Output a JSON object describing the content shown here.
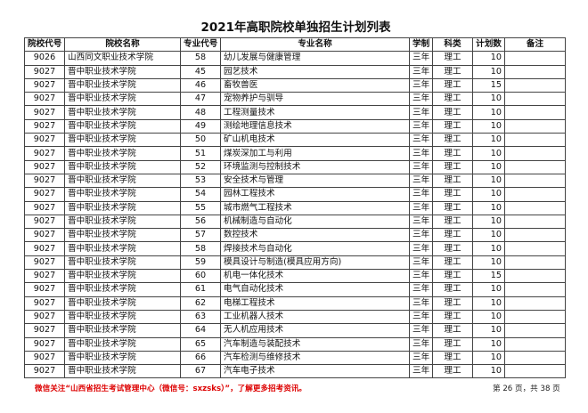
{
  "title": "2021年高职院校单独招生计划列表",
  "headers": [
    "院校代号",
    "院校名称",
    "专业代号",
    "专业名称",
    "学制",
    "科类",
    "计划数",
    "备注"
  ],
  "rows": [
    [
      "9026",
      "山西同文职业技术学院",
      "58",
      "幼儿发展与健康管理",
      "三年",
      "理工",
      "10",
      ""
    ],
    [
      "9027",
      "晋中职业技术学院",
      "45",
      "园艺技术",
      "三年",
      "理工",
      "10",
      ""
    ],
    [
      "9027",
      "晋中职业技术学院",
      "46",
      "畜牧兽医",
      "三年",
      "理工",
      "15",
      ""
    ],
    [
      "9027",
      "晋中职业技术学院",
      "47",
      "宠物养护与驯导",
      "三年",
      "理工",
      "10",
      ""
    ],
    [
      "9027",
      "晋中职业技术学院",
      "48",
      "工程测量技术",
      "三年",
      "理工",
      "10",
      ""
    ],
    [
      "9027",
      "晋中职业技术学院",
      "49",
      "测绘地理信息技术",
      "三年",
      "理工",
      "10",
      ""
    ],
    [
      "9027",
      "晋中职业技术学院",
      "50",
      "矿山机电技术",
      "三年",
      "理工",
      "10",
      ""
    ],
    [
      "9027",
      "晋中职业技术学院",
      "51",
      "煤炭深加工与利用",
      "三年",
      "理工",
      "10",
      ""
    ],
    [
      "9027",
      "晋中职业技术学院",
      "52",
      "环境监测与控制技术",
      "三年",
      "理工",
      "10",
      ""
    ],
    [
      "9027",
      "晋中职业技术学院",
      "53",
      "安全技术与管理",
      "三年",
      "理工",
      "10",
      ""
    ],
    [
      "9027",
      "晋中职业技术学院",
      "54",
      "园林工程技术",
      "三年",
      "理工",
      "10",
      ""
    ],
    [
      "9027",
      "晋中职业技术学院",
      "55",
      "城市燃气工程技术",
      "三年",
      "理工",
      "10",
      ""
    ],
    [
      "9027",
      "晋中职业技术学院",
      "56",
      "机械制造与自动化",
      "三年",
      "理工",
      "10",
      ""
    ],
    [
      "9027",
      "晋中职业技术学院",
      "57",
      "数控技术",
      "三年",
      "理工",
      "10",
      ""
    ],
    [
      "9027",
      "晋中职业技术学院",
      "58",
      "焊接技术与自动化",
      "三年",
      "理工",
      "10",
      ""
    ],
    [
      "9027",
      "晋中职业技术学院",
      "59",
      "模具设计与制造(模具应用方向)",
      "三年",
      "理工",
      "10",
      ""
    ],
    [
      "9027",
      "晋中职业技术学院",
      "60",
      "机电一体化技术",
      "三年",
      "理工",
      "15",
      ""
    ],
    [
      "9027",
      "晋中职业技术学院",
      "61",
      "电气自动化技术",
      "三年",
      "理工",
      "10",
      ""
    ],
    [
      "9027",
      "晋中职业技术学院",
      "62",
      "电梯工程技术",
      "三年",
      "理工",
      "10",
      ""
    ],
    [
      "9027",
      "晋中职业技术学院",
      "63",
      "工业机器人技术",
      "三年",
      "理工",
      "10",
      ""
    ],
    [
      "9027",
      "晋中职业技术学院",
      "64",
      "无人机应用技术",
      "三年",
      "理工",
      "10",
      ""
    ],
    [
      "9027",
      "晋中职业技术学院",
      "65",
      "汽车制造与装配技术",
      "三年",
      "理工",
      "10",
      ""
    ],
    [
      "9027",
      "晋中职业技术学院",
      "66",
      "汽车检测与维修技术",
      "三年",
      "理工",
      "10",
      ""
    ],
    [
      "9027",
      "晋中职业技术学院",
      "67",
      "汽车电子技术",
      "三年",
      "理工",
      "10",
      ""
    ]
  ],
  "footer": {
    "notice": "微信关注“山西省招生考试管理中心（微信号：sxzsks）”，了解更多招考资讯。",
    "page": "第 26 页，共 38 页"
  }
}
